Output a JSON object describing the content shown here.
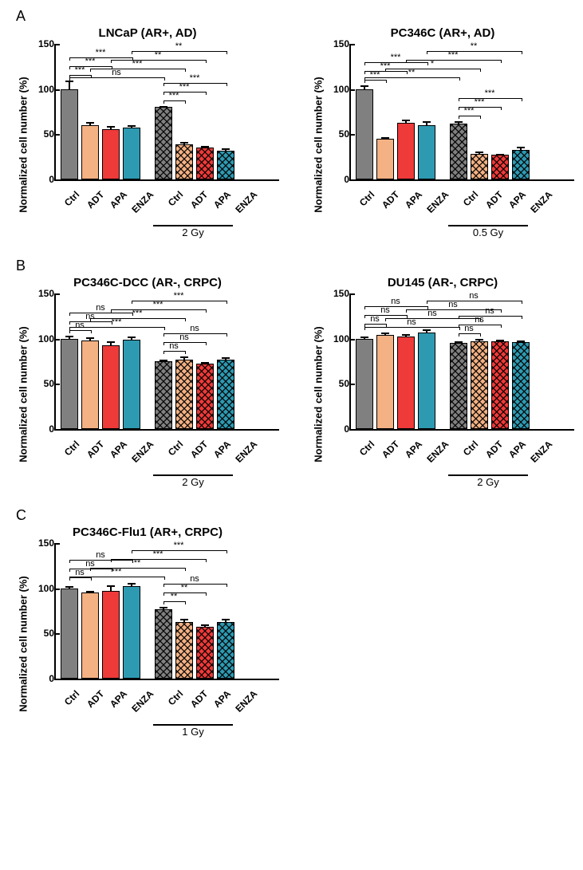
{
  "colors": {
    "ctrl": "#808080",
    "adt": "#f4b183",
    "apa": "#ee3a39",
    "enza": "#2e9ab2",
    "axis": "#000000",
    "background": "#ffffff"
  },
  "axis": {
    "ylabel": "Normalized cell number (%)",
    "ylim": [
      0,
      150
    ],
    "yticks": [
      0,
      50,
      100,
      150
    ],
    "tick_fontsize": 12,
    "label_fontsize": 13
  },
  "x_labels": [
    "Ctrl",
    "ADT",
    "APA",
    "ENZA"
  ],
  "sections": {
    "A": [
      {
        "title": "LNCaP (AR+, AD)",
        "dose_label": "2 Gy",
        "groups": [
          {
            "values": [
              100,
              60,
              56,
              57
            ],
            "errors": [
              10,
              4,
              4,
              4
            ],
            "hatched": false
          },
          {
            "values": [
              80,
              39,
              35,
              32
            ],
            "errors": [
              2,
              3,
              3,
              3
            ],
            "hatched": true
          }
        ],
        "sig1": [
          "***",
          "***",
          "***"
        ],
        "sig2": [
          "***",
          "***",
          "***"
        ],
        "sig_cross": [
          "ns",
          "***",
          "**",
          "**"
        ]
      },
      {
        "title": "PC346C (AR+, AD)",
        "dose_label": "0.5 Gy",
        "groups": [
          {
            "values": [
              100,
              45,
              63,
              60
            ],
            "errors": [
              5,
              3,
              4,
              5
            ],
            "hatched": false
          },
          {
            "values": [
              62,
              28,
              27,
              33
            ],
            "errors": [
              3,
              4,
              2,
              4
            ],
            "hatched": true
          }
        ],
        "sig1": [
          "***",
          "***",
          "***"
        ],
        "sig2": [
          "***",
          "***",
          "***"
        ],
        "sig_cross": [
          "**",
          "*",
          "***",
          "**"
        ]
      }
    ],
    "B": [
      {
        "title": "PC346C-DCC (AR-, CRPC)",
        "dose_label": "2 Gy",
        "groups": [
          {
            "values": [
              100,
              98,
              93,
              99
            ],
            "errors": [
              4,
              4,
              5,
              4
            ],
            "hatched": false
          },
          {
            "values": [
              75,
              77,
              72,
              77
            ],
            "errors": [
              3,
              4,
              3,
              3
            ],
            "hatched": true
          }
        ],
        "sig1": [
          "ns",
          "ns",
          "ns"
        ],
        "sig2": [
          "ns",
          "ns",
          "ns"
        ],
        "sig_cross": [
          "***",
          "***",
          "***",
          "***"
        ]
      },
      {
        "title": "DU145 (AR-, CRPC)",
        "dose_label": "2 Gy",
        "groups": [
          {
            "values": [
              100,
              104,
              102,
              107
            ],
            "errors": [
              3,
              4,
              4,
              4
            ],
            "hatched": false
          },
          {
            "values": [
              95,
              97,
              97,
              96
            ],
            "errors": [
              3,
              4,
              3,
              3
            ],
            "hatched": true
          }
        ],
        "sig1": [
          "ns",
          "ns",
          "ns"
        ],
        "sig2": [
          "ns",
          "ns",
          "ns"
        ],
        "sig_cross": [
          "ns",
          "ns",
          "ns",
          "ns"
        ]
      }
    ],
    "C": [
      {
        "title": "PC346C-Flu1 (AR+, CRPC)",
        "dose_label": "1 Gy",
        "groups": [
          {
            "values": [
              100,
              95,
              97,
              102
            ],
            "errors": [
              3,
              3,
              7,
              5
            ],
            "hatched": false
          },
          {
            "values": [
              77,
              63,
              57,
              63
            ],
            "errors": [
              3,
              4,
              4,
              4
            ],
            "hatched": true
          }
        ],
        "sig1": [
          "ns",
          "ns",
          "ns"
        ],
        "sig2": [
          "**",
          "**",
          "ns"
        ],
        "sig_cross": [
          "***",
          "**",
          "***",
          "***"
        ]
      }
    ]
  }
}
